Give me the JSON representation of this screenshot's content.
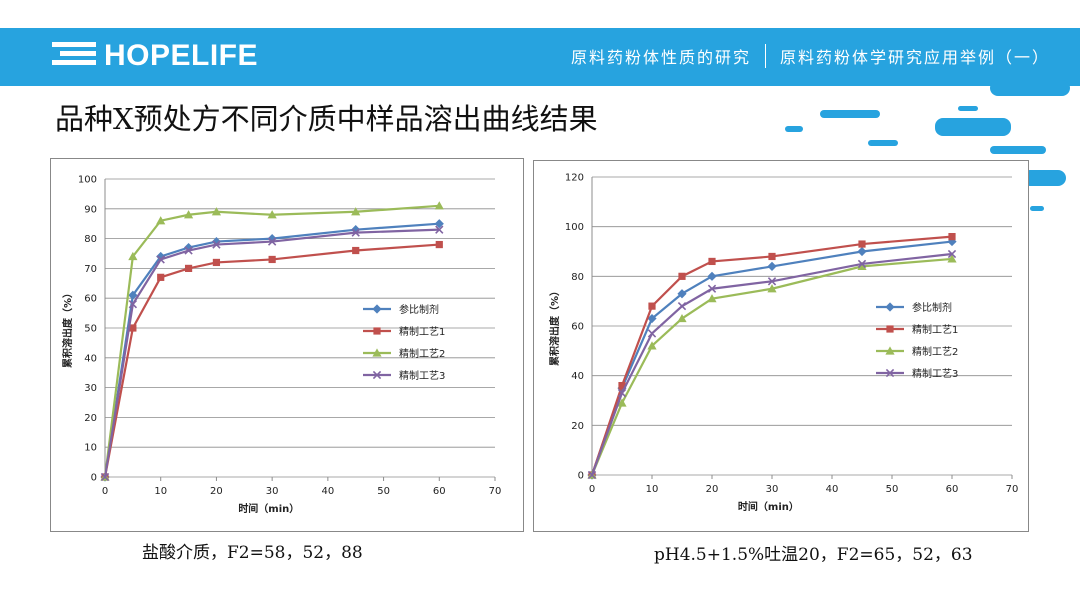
{
  "header": {
    "logo_text": "HOPELIFE",
    "section": "原料药粉体性质的研究",
    "subsection": "原料药粉体学研究应用举例（一）"
  },
  "page_title": "品种X预处方不同介质中样品溶出曲线结果",
  "colors": {
    "topbar": "#27a3df",
    "series": [
      "#4f81bd",
      "#c0504d",
      "#9bbb59",
      "#8064a2"
    ]
  },
  "chart_data": [
    {
      "type": "line",
      "xlabel": "时间（min）",
      "ylabel": "累积溶出度（%）",
      "xlim": [
        0,
        70
      ],
      "ylim": [
        0,
        100
      ],
      "xticks": [
        0,
        10,
        20,
        30,
        40,
        50,
        60,
        70
      ],
      "yticks": [
        0,
        10,
        20,
        30,
        40,
        50,
        60,
        70,
        80,
        90,
        100
      ],
      "grid": true,
      "legend": "middle-right",
      "x": [
        0,
        5,
        10,
        15,
        20,
        30,
        45,
        60
      ],
      "series": [
        {
          "name": "参比制剂",
          "marker": "diamond",
          "values": [
            0,
            61,
            74,
            77,
            79,
            80,
            83,
            85
          ]
        },
        {
          "name": "精制工艺1",
          "marker": "square",
          "values": [
            0,
            50,
            67,
            70,
            72,
            73,
            76,
            78
          ]
        },
        {
          "name": "精制工艺2",
          "marker": "triangle",
          "values": [
            0,
            74,
            86,
            88,
            89,
            88,
            89,
            91
          ]
        },
        {
          "name": "精制工艺3",
          "marker": "x",
          "values": [
            0,
            58,
            73,
            76,
            78,
            79,
            82,
            83
          ]
        }
      ],
      "caption": "盐酸介质，F2=58，52，88"
    },
    {
      "type": "line",
      "xlabel": "时间（min）",
      "ylabel": "累积溶出度（%）",
      "xlim": [
        0,
        70
      ],
      "ylim": [
        0,
        120
      ],
      "xticks": [
        0,
        10,
        20,
        30,
        40,
        50,
        60,
        70
      ],
      "yticks": [
        0,
        20,
        40,
        60,
        80,
        100,
        120
      ],
      "grid": true,
      "legend": "middle-right",
      "x": [
        0,
        5,
        10,
        15,
        20,
        30,
        45,
        60
      ],
      "series": [
        {
          "name": "参比制剂",
          "marker": "diamond",
          "values": [
            0,
            35,
            63,
            73,
            80,
            84,
            90,
            94
          ]
        },
        {
          "name": "精制工艺1",
          "marker": "square",
          "values": [
            0,
            36,
            68,
            80,
            86,
            88,
            93,
            96
          ]
        },
        {
          "name": "精制工艺2",
          "marker": "triangle",
          "values": [
            0,
            29,
            52,
            63,
            71,
            75,
            84,
            87
          ]
        },
        {
          "name": "精制工艺3",
          "marker": "x",
          "values": [
            0,
            33,
            57,
            68,
            75,
            78,
            85,
            89
          ]
        }
      ],
      "caption": "pH4.5+1.5%吐温20，F2=65，52，63"
    }
  ]
}
